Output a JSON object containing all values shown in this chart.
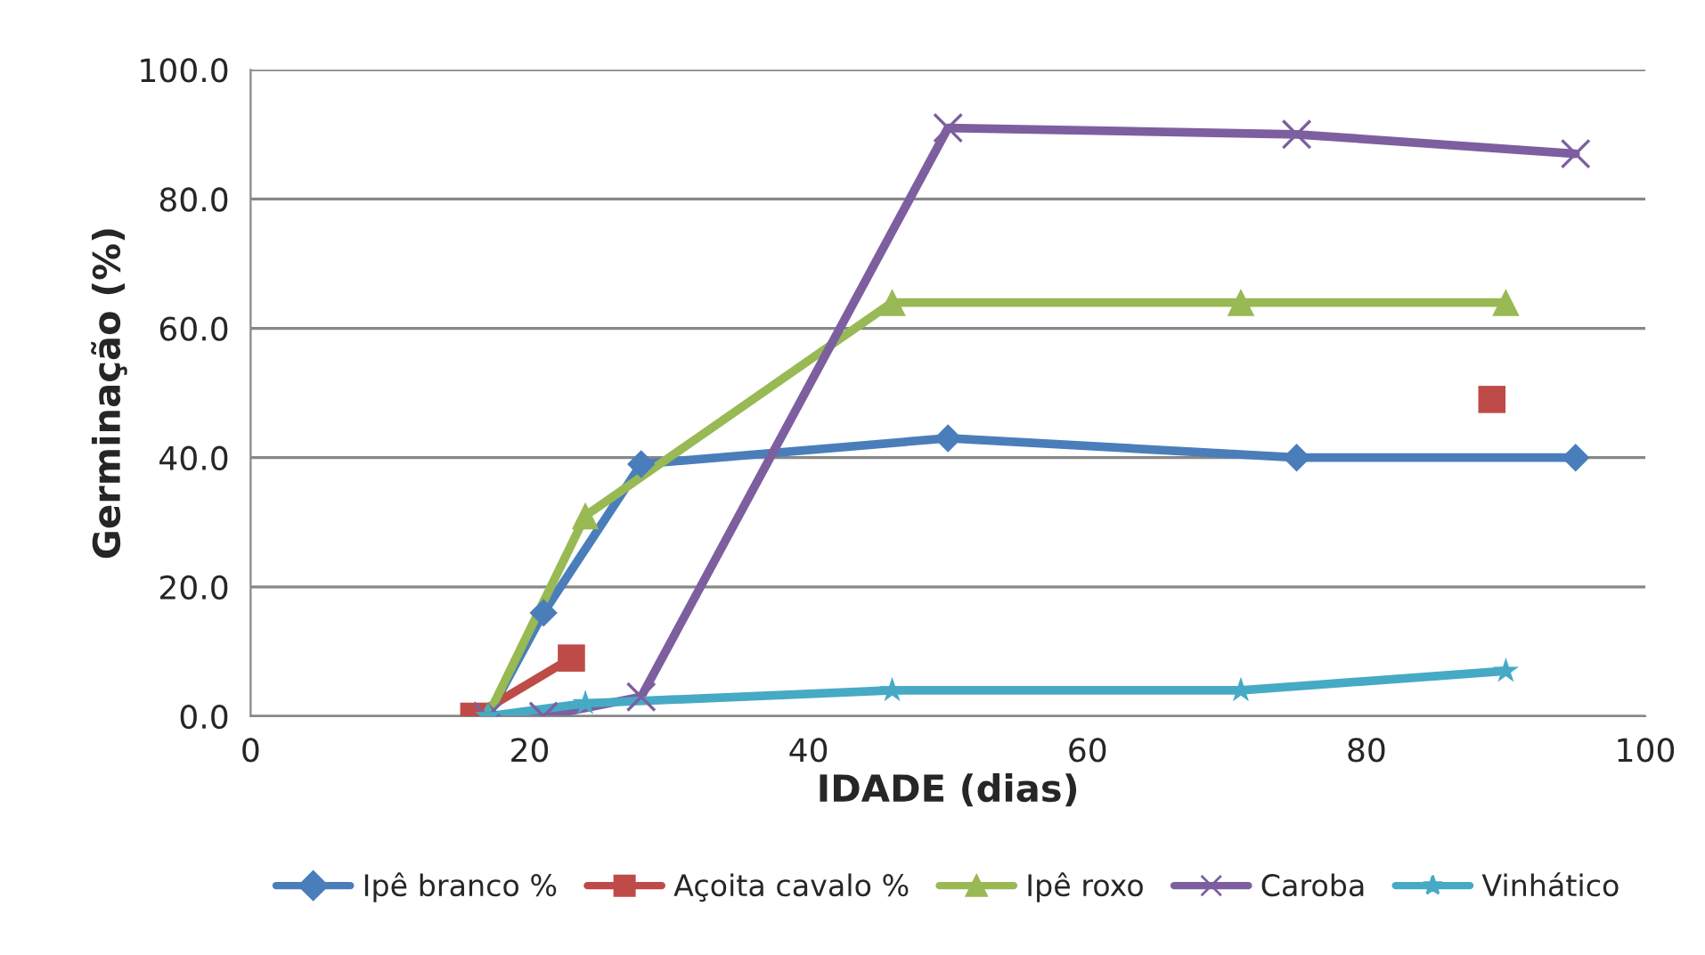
{
  "chart_data": {
    "type": "line",
    "xlabel": "IDADE (dias)",
    "ylabel": "Germinação (%)",
    "xlim": [
      0,
      100
    ],
    "xticks": [
      0,
      20,
      40,
      60,
      80,
      100
    ],
    "ylim": [
      0,
      100
    ],
    "yticks": [
      {
        "value": 0,
        "label": "0.0"
      },
      {
        "value": 20,
        "label": "20.0"
      },
      {
        "value": 40,
        "label": "40.0"
      },
      {
        "value": 60,
        "label": "60.0"
      },
      {
        "value": 80,
        "label": "80.0"
      },
      {
        "value": 100,
        "label": "100.0"
      }
    ],
    "grid": "y",
    "legend": "bottom",
    "series": [
      {
        "name": "Ipê branco %",
        "color": "#4a7ebb",
        "marker": "diamond",
        "x": [
          17,
          21,
          28,
          50,
          75,
          95
        ],
        "values": [
          0,
          16,
          39,
          43,
          40,
          40
        ]
      },
      {
        "name": "Açoita cavalo %",
        "color": "#be4b48",
        "marker": "square",
        "x": [
          16,
          23,
          50,
          89
        ],
        "values": [
          0,
          9,
          null,
          49
        ]
      },
      {
        "name": "Ipê roxo",
        "color": "#98b954",
        "marker": "triangle",
        "x": [
          17,
          24,
          46,
          71,
          90
        ],
        "values": [
          0,
          31,
          64,
          64,
          64
        ]
      },
      {
        "name": "Caroba",
        "color": "#7d5fa0",
        "marker": "cross",
        "x": [
          17,
          21,
          28,
          50,
          75,
          95
        ],
        "values": [
          0,
          0,
          3,
          91,
          90,
          87
        ]
      },
      {
        "name": "Vinhático",
        "color": "#46aac5",
        "marker": "star",
        "x": [
          17,
          24,
          46,
          71,
          90
        ],
        "values": [
          0,
          2,
          4,
          4,
          7
        ]
      }
    ]
  }
}
